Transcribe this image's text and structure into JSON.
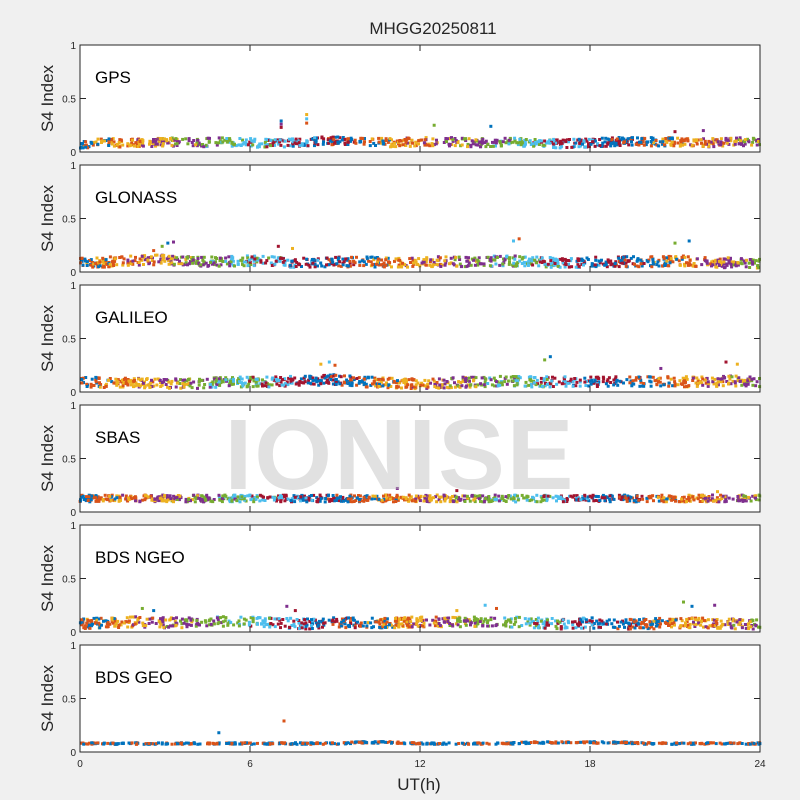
{
  "chart_data": {
    "type": "scatter",
    "title": "MHGG20250811",
    "xlabel": "UT(h)",
    "ylabel": "S4 Index",
    "xlim": [
      0,
      24
    ],
    "ylim": [
      0,
      1
    ],
    "xticks": [
      "0",
      "6",
      "12",
      "18",
      "24"
    ],
    "yticks": [
      "0",
      "0.5",
      "1"
    ],
    "watermark": "IONISE",
    "colors": [
      "#0072BD",
      "#D95319",
      "#EDB120",
      "#7E2F8E",
      "#77AC30",
      "#4DBEEE",
      "#A2142F"
    ],
    "panels": [
      {
        "name": "GPS",
        "baseline": [
          0.08,
          0.09,
          0.09,
          0.1,
          0.09,
          0.1,
          0.09,
          0.08,
          0.1,
          0.11,
          0.1,
          0.09,
          0.1,
          0.1,
          0.09,
          0.1,
          0.09,
          0.08,
          0.09,
          0.1,
          0.1,
          0.1,
          0.09,
          0.1,
          0.1
        ],
        "spread": 0.05,
        "spikes": [
          [
            7.1,
            0.29
          ],
          [
            7.1,
            0.26
          ],
          [
            7.1,
            0.23
          ],
          [
            8.0,
            0.35
          ],
          [
            8.0,
            0.31
          ],
          [
            8.0,
            0.27
          ],
          [
            12.5,
            0.25
          ],
          [
            14.5,
            0.24
          ],
          [
            22.0,
            0.2
          ],
          [
            21.0,
            0.19
          ]
        ]
      },
      {
        "name": "GLONASS",
        "baseline": [
          0.09,
          0.1,
          0.11,
          0.12,
          0.1,
          0.1,
          0.11,
          0.1,
          0.09,
          0.1,
          0.1,
          0.09,
          0.1,
          0.1,
          0.1,
          0.11,
          0.1,
          0.09,
          0.1,
          0.1,
          0.1,
          0.11,
          0.1,
          0.09,
          0.08
        ],
        "spread": 0.06,
        "spikes": [
          [
            2.6,
            0.2
          ],
          [
            2.9,
            0.24
          ],
          [
            3.1,
            0.27
          ],
          [
            3.3,
            0.28
          ],
          [
            7.0,
            0.24
          ],
          [
            7.5,
            0.22
          ],
          [
            15.3,
            0.29
          ],
          [
            15.5,
            0.31
          ],
          [
            21.0,
            0.27
          ],
          [
            21.5,
            0.29
          ]
        ]
      },
      {
        "name": "GALILEO",
        "baseline": [
          0.1,
          0.09,
          0.09,
          0.08,
          0.08,
          0.1,
          0.1,
          0.1,
          0.11,
          0.12,
          0.1,
          0.09,
          0.08,
          0.09,
          0.1,
          0.11,
          0.1,
          0.1,
          0.1,
          0.1,
          0.1,
          0.1,
          0.1,
          0.11,
          0.1
        ],
        "spread": 0.06,
        "spikes": [
          [
            8.5,
            0.26
          ],
          [
            8.8,
            0.28
          ],
          [
            9.0,
            0.25
          ],
          [
            16.4,
            0.3
          ],
          [
            16.6,
            0.33
          ],
          [
            20.5,
            0.22
          ],
          [
            22.8,
            0.28
          ],
          [
            23.2,
            0.26
          ]
        ]
      },
      {
        "name": "SBAS",
        "baseline": [
          0.13,
          0.13,
          0.13,
          0.13,
          0.13,
          0.13,
          0.13,
          0.13,
          0.13,
          0.13,
          0.13,
          0.13,
          0.13,
          0.13,
          0.13,
          0.13,
          0.13,
          0.13,
          0.13,
          0.13,
          0.13,
          0.13,
          0.13,
          0.13,
          0.13
        ],
        "spread": 0.04,
        "spikes": [
          [
            11.2,
            0.22
          ],
          [
            13.3,
            0.2
          ],
          [
            22.5,
            0.19
          ]
        ]
      },
      {
        "name": "BDS NGEO",
        "baseline": [
          0.08,
          0.09,
          0.1,
          0.09,
          0.09,
          0.1,
          0.1,
          0.09,
          0.08,
          0.09,
          0.09,
          0.09,
          0.1,
          0.1,
          0.1,
          0.1,
          0.09,
          0.08,
          0.09,
          0.08,
          0.08,
          0.09,
          0.09,
          0.08,
          0.08
        ],
        "spread": 0.06,
        "spikes": [
          [
            2.2,
            0.22
          ],
          [
            2.6,
            0.2
          ],
          [
            7.3,
            0.24
          ],
          [
            7.6,
            0.2
          ],
          [
            13.3,
            0.2
          ],
          [
            14.3,
            0.25
          ],
          [
            14.7,
            0.22
          ],
          [
            21.3,
            0.28
          ],
          [
            21.6,
            0.24
          ],
          [
            22.4,
            0.25
          ]
        ]
      },
      {
        "name": "BDS GEO",
        "baseline": [
          0.08,
          0.08,
          0.08,
          0.08,
          0.08,
          0.08,
          0.08,
          0.08,
          0.08,
          0.08,
          0.09,
          0.09,
          0.08,
          0.08,
          0.08,
          0.08,
          0.09,
          0.09,
          0.09,
          0.09,
          0.08,
          0.08,
          0.08,
          0.08,
          0.08
        ],
        "spread": 0.01,
        "spikes": [
          [
            4.9,
            0.18
          ],
          [
            7.2,
            0.29
          ]
        ],
        "colors": [
          "#D95319",
          "#0072BD"
        ]
      }
    ]
  }
}
